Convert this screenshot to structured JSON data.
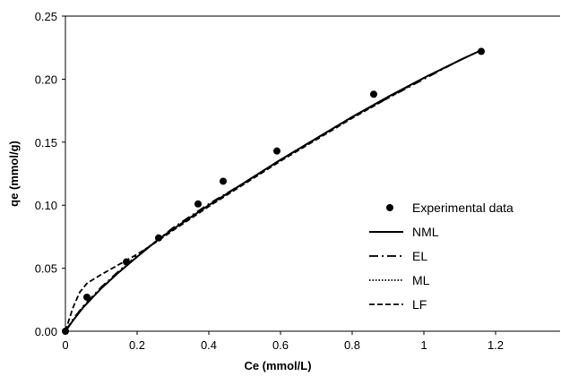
{
  "chart_data": {
    "type": "scatter",
    "xlabel": "Ce (mmol/L)",
    "ylabel": "qe (mmol/g)",
    "xlim": [
      0,
      1.38
    ],
    "ylim": [
      0,
      0.25
    ],
    "x_ticks": [
      "0",
      "0.2",
      "0.4",
      "0.6",
      "0.8",
      "1",
      "1.2"
    ],
    "x_tick_values": [
      0,
      0.2,
      0.4,
      0.6,
      0.8,
      1.0,
      1.2
    ],
    "y_ticks": [
      "0.00",
      "0.05",
      "0.10",
      "0.15",
      "0.20",
      "0.25"
    ],
    "y_tick_values": [
      0,
      0.05,
      0.1,
      0.15,
      0.2,
      0.25
    ],
    "grid": false,
    "legend_position": "right",
    "series": [
      {
        "name": "Experimental data",
        "style": "points",
        "x": [
          0.0,
          0.06,
          0.17,
          0.26,
          0.37,
          0.44,
          0.59,
          0.86,
          1.16
        ],
        "y": [
          0.0,
          0.027,
          0.055,
          0.074,
          0.101,
          0.119,
          0.143,
          0.188,
          0.222
        ]
      },
      {
        "name": "NML",
        "style": "solid",
        "x": [
          0.0,
          0.02,
          0.05,
          0.1,
          0.15,
          0.2,
          0.26,
          0.3,
          0.4,
          0.5,
          0.6,
          0.7,
          0.8,
          0.9,
          1.0,
          1.1,
          1.16
        ],
        "y": [
          0.0,
          0.008,
          0.019,
          0.034,
          0.047,
          0.059,
          0.073,
          0.081,
          0.1,
          0.118,
          0.136,
          0.153,
          0.17,
          0.186,
          0.201,
          0.215,
          0.223
        ]
      },
      {
        "name": "EL",
        "style": "dashdot",
        "x": [
          0.0,
          0.02,
          0.05,
          0.1,
          0.15,
          0.2,
          0.26,
          0.3,
          0.4,
          0.5,
          0.6,
          0.7,
          0.8,
          0.9,
          1.0,
          1.1,
          1.16
        ],
        "y": [
          0.0,
          0.009,
          0.02,
          0.035,
          0.048,
          0.06,
          0.073,
          0.082,
          0.101,
          0.118,
          0.136,
          0.153,
          0.17,
          0.185,
          0.2,
          0.215,
          0.223
        ]
      },
      {
        "name": "ML",
        "style": "dotted",
        "x": [
          0.0,
          0.02,
          0.05,
          0.1,
          0.15,
          0.2,
          0.26,
          0.3,
          0.4,
          0.5,
          0.6,
          0.7,
          0.8,
          0.9,
          1.0,
          1.1,
          1.16
        ],
        "y": [
          0.0,
          0.008,
          0.019,
          0.034,
          0.047,
          0.059,
          0.073,
          0.081,
          0.1,
          0.118,
          0.136,
          0.153,
          0.17,
          0.186,
          0.201,
          0.215,
          0.223
        ]
      },
      {
        "name": "LF",
        "style": "dashed",
        "x": [
          0.0,
          0.02,
          0.04,
          0.06,
          0.1,
          0.15,
          0.2,
          0.26,
          0.3,
          0.4,
          0.5,
          0.6,
          0.7,
          0.8,
          0.9,
          1.0,
          1.1,
          1.16
        ],
        "y": [
          0.0,
          0.018,
          0.031,
          0.038,
          0.045,
          0.053,
          0.061,
          0.072,
          0.08,
          0.099,
          0.117,
          0.135,
          0.152,
          0.169,
          0.185,
          0.201,
          0.215,
          0.223
        ]
      }
    ]
  }
}
